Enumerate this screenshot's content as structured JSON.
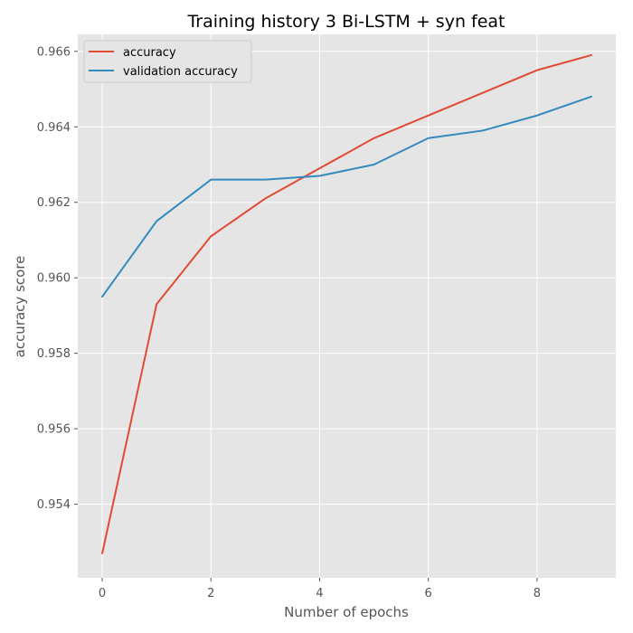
{
  "chart_data": {
    "type": "line",
    "title": "Training history 3 Bi-LSTM + syn feat",
    "xlabel": "Number of epochs",
    "ylabel": "accuracy score",
    "x": [
      0,
      1,
      2,
      3,
      4,
      5,
      6,
      7,
      8,
      9
    ],
    "xlim": [
      -0.45,
      9.45
    ],
    "ylim": [
      0.95205,
      0.96645
    ],
    "xticks": [
      0,
      2,
      4,
      6,
      8
    ],
    "xtick_labels": [
      "0",
      "2",
      "4",
      "6",
      "8"
    ],
    "yticks": [
      0.954,
      0.956,
      0.958,
      0.96,
      0.962,
      0.964,
      0.966
    ],
    "ytick_labels": [
      "0.954",
      "0.956",
      "0.958",
      "0.960",
      "0.962",
      "0.964",
      "0.966"
    ],
    "grid": true,
    "legend_position": "top-left",
    "series": [
      {
        "name": "accuracy",
        "color": "#E24A33",
        "values": [
          0.9527,
          0.9593,
          0.9611,
          0.9621,
          0.9629,
          0.9637,
          0.9643,
          0.9649,
          0.9655,
          0.9659
        ]
      },
      {
        "name": "validation accuracy",
        "color": "#348ABD",
        "values": [
          0.9595,
          0.9615,
          0.9626,
          0.9626,
          0.9627,
          0.963,
          0.9637,
          0.9639,
          0.9643,
          0.9648
        ]
      }
    ]
  }
}
